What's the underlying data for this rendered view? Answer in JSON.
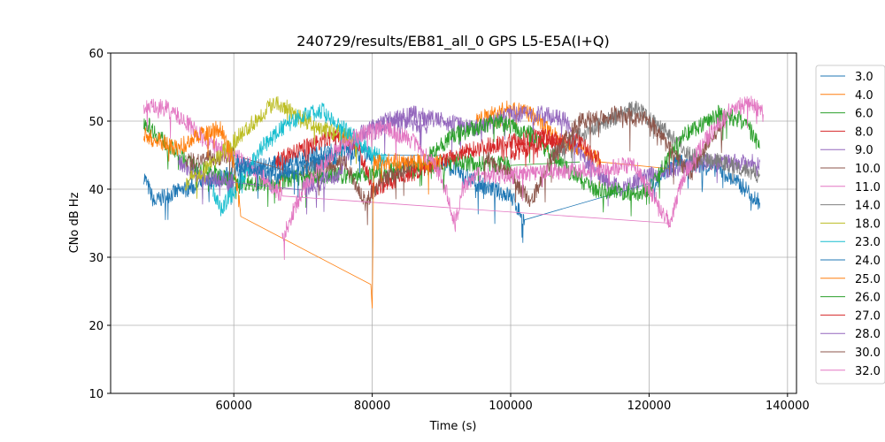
{
  "chart_data": {
    "type": "line",
    "title": "240729/results/EB81_all_0 GPS L5-E5A(I+Q)",
    "xlabel": "Time (s)",
    "ylabel": "CNo dB Hz",
    "xlim": [
      42200,
      141300
    ],
    "ylim": [
      10,
      60
    ],
    "xticks": [
      60000,
      80000,
      100000,
      120000,
      140000
    ],
    "yticks": [
      10,
      20,
      30,
      40,
      50,
      60
    ],
    "grid": true,
    "legend_position": "right-outside",
    "series": [
      {
        "name": "3.0",
        "color": "#1f77b4",
        "points": [
          [
            47000,
            42
          ],
          [
            48500,
            38
          ],
          [
            50000,
            39
          ],
          [
            56000,
            41
          ],
          [
            62000,
            43
          ],
          [
            68000,
            44
          ],
          [
            75000,
            46
          ],
          [
            80000,
            45
          ],
          [
            90000,
            44
          ],
          [
            95000,
            41
          ],
          [
            100000,
            39
          ],
          [
            102000,
            35.5
          ],
          [
            120000,
            40
          ],
          [
            124000,
            44
          ],
          [
            130000,
            43
          ],
          [
            134000,
            40
          ],
          [
            136000,
            38
          ]
        ]
      },
      {
        "name": "4.0",
        "color": "#ff7f0e",
        "points": [
          [
            95000,
            50
          ],
          [
            100000,
            52
          ],
          [
            103000,
            51
          ],
          [
            106000,
            48
          ],
          [
            110000,
            46
          ],
          [
            113000,
            44
          ],
          [
            123000,
            43
          ]
        ]
      },
      {
        "name": "6.0",
        "color": "#2ca02c",
        "points": [
          [
            47000,
            50
          ],
          [
            50000,
            47
          ],
          [
            53000,
            44
          ],
          [
            55000,
            43
          ],
          [
            58000,
            42
          ],
          [
            62000,
            41
          ],
          [
            66000,
            41
          ],
          [
            70000,
            42
          ],
          [
            78000,
            42
          ],
          [
            85000,
            43
          ],
          [
            92000,
            44
          ],
          [
            100000,
            43.5
          ],
          [
            110000,
            44
          ]
        ]
      },
      {
        "name": "8.0",
        "color": "#d62728",
        "points": [
          [
            66000,
            44
          ],
          [
            70000,
            46
          ],
          [
            75000,
            48
          ],
          [
            78000,
            46
          ],
          [
            80000,
            40
          ],
          [
            85000,
            42
          ],
          [
            90000,
            44
          ],
          [
            95000,
            46
          ],
          [
            100000,
            47
          ],
          [
            105000,
            48
          ],
          [
            108000,
            46
          ]
        ]
      },
      {
        "name": "9.0",
        "color": "#9467bd",
        "points": [
          [
            52000,
            44
          ],
          [
            55000,
            42
          ],
          [
            60000,
            41
          ],
          [
            70000,
            40
          ],
          [
            75000,
            42
          ],
          [
            78000,
            48
          ],
          [
            82000,
            50
          ],
          [
            86000,
            51
          ],
          [
            90000,
            50
          ],
          [
            95000,
            49
          ],
          [
            100000,
            51
          ],
          [
            105000,
            51
          ],
          [
            108000,
            50
          ],
          [
            110000,
            45
          ],
          [
            113000,
            42
          ],
          [
            116000,
            40
          ],
          [
            120000,
            42
          ],
          [
            127000,
            44
          ],
          [
            136000,
            44
          ]
        ]
      },
      {
        "name": "10.0",
        "color": "#8c564b",
        "points": [
          [
            53000,
            44
          ],
          [
            60000,
            45
          ],
          [
            70000,
            43
          ],
          [
            76000,
            44
          ],
          [
            79000,
            38
          ],
          [
            81000,
            41
          ],
          [
            86000,
            44
          ]
        ]
      },
      {
        "name": "11.0",
        "color": "#e377c2",
        "points": [
          [
            47000,
            52
          ],
          [
            50000,
            52
          ],
          [
            53000,
            50
          ],
          [
            56000,
            47
          ],
          [
            60000,
            45
          ],
          [
            63000,
            43
          ],
          [
            67000,
            39
          ],
          [
            123000,
            35
          ]
        ]
      },
      {
        "name": "14.0",
        "color": "#7f7f7f",
        "points": [
          [
            106000,
            45
          ],
          [
            110000,
            48
          ],
          [
            114000,
            50
          ],
          [
            118000,
            52
          ],
          [
            122000,
            49
          ],
          [
            126000,
            45
          ],
          [
            130000,
            44
          ],
          [
            134000,
            43
          ],
          [
            136000,
            42
          ]
        ]
      },
      {
        "name": "18.0",
        "color": "#bcbd22",
        "points": [
          [
            53000,
            41
          ],
          [
            57000,
            44
          ],
          [
            60000,
            47
          ],
          [
            64000,
            51
          ],
          [
            66000,
            53
          ],
          [
            69000,
            51
          ],
          [
            72000,
            49
          ],
          [
            76000,
            48
          ],
          [
            78000,
            47
          ]
        ]
      },
      {
        "name": "23.0",
        "color": "#17becf",
        "points": [
          [
            57000,
            40
          ],
          [
            58000,
            37
          ],
          [
            61000,
            41
          ],
          [
            64000,
            46
          ],
          [
            67000,
            49
          ],
          [
            70000,
            51
          ],
          [
            73000,
            51.5
          ],
          [
            76000,
            49
          ],
          [
            79000,
            46
          ],
          [
            82000,
            44
          ]
        ]
      },
      {
        "name": "24.0",
        "color": "#1f77b4",
        "points": [
          [
            60000,
            44
          ],
          [
            66000,
            42
          ],
          [
            70000,
            43
          ],
          [
            75000,
            45
          ]
        ]
      },
      {
        "name": "25.0",
        "color": "#ff7f0e",
        "points": [
          [
            47000,
            48
          ],
          [
            52000,
            46
          ],
          [
            55000,
            48
          ],
          [
            58000,
            49
          ],
          [
            60000,
            44
          ],
          [
            61000,
            36
          ],
          [
            79800,
            26
          ],
          [
            80000,
            22.5
          ],
          [
            80200,
            44
          ],
          [
            85000,
            44
          ],
          [
            90000,
            44
          ]
        ]
      },
      {
        "name": "26.0",
        "color": "#2ca02c",
        "points": [
          [
            88000,
            45
          ],
          [
            92000,
            48
          ],
          [
            98000,
            50
          ],
          [
            103000,
            48
          ],
          [
            108000,
            43
          ],
          [
            112000,
            40
          ],
          [
            118000,
            39.5
          ],
          [
            120000,
            40
          ],
          [
            125000,
            48
          ],
          [
            130000,
            51
          ],
          [
            134000,
            50
          ],
          [
            136000,
            46
          ]
        ]
      },
      {
        "name": "27.0",
        "color": "#d62728",
        "points": [
          [
            100000,
            45
          ],
          [
            105000,
            47
          ],
          [
            110000,
            47
          ],
          [
            113000,
            44
          ]
        ]
      },
      {
        "name": "28.0",
        "color": "#9467bd",
        "points": [
          [
            80000,
            49
          ],
          [
            85000,
            50
          ],
          [
            88000,
            49
          ]
        ]
      },
      {
        "name": "30.0",
        "color": "#8c564b",
        "points": [
          [
            96000,
            45
          ],
          [
            100000,
            42
          ],
          [
            103000,
            38
          ],
          [
            106000,
            45
          ],
          [
            110000,
            50
          ],
          [
            115000,
            51
          ],
          [
            120000,
            50
          ],
          [
            123000,
            46
          ],
          [
            126000,
            42
          ],
          [
            128000,
            46
          ],
          [
            131000,
            50
          ]
        ]
      },
      {
        "name": "32.0",
        "color": "#e377c2",
        "points": [
          [
            67000,
            33
          ],
          [
            70000,
            40
          ],
          [
            74000,
            45
          ],
          [
            78000,
            48
          ],
          [
            82000,
            49
          ],
          [
            86000,
            47
          ],
          [
            90000,
            42
          ],
          [
            92000,
            35
          ],
          [
            93000,
            40
          ],
          [
            95000,
            42
          ],
          [
            100000,
            42
          ],
          [
            105000,
            42.5
          ],
          [
            113000,
            43
          ],
          [
            118000,
            43.5
          ],
          [
            123000,
            35
          ],
          [
            125000,
            42
          ],
          [
            128000,
            47
          ],
          [
            132000,
            52
          ],
          [
            135000,
            52.5
          ],
          [
            136500,
            51
          ]
        ]
      }
    ]
  }
}
